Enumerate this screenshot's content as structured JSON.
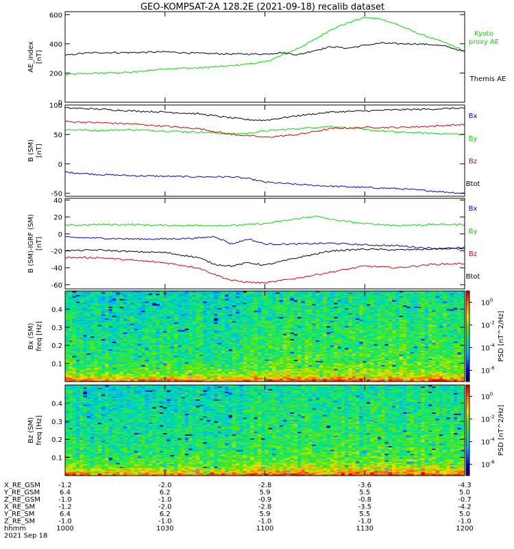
{
  "title": "GEO-KOMPSAT-2A 128.2E (2021-09-18) recalib dataset",
  "colors": {
    "black": "#000000",
    "green": "#00dd00",
    "red": "#dd0000",
    "blue": "#0000cc"
  },
  "time_axis": {
    "start_hhmm": "1000",
    "end_hhmm": "1200",
    "tick_minutes": [
      0,
      30,
      60,
      90,
      120
    ]
  },
  "chart_data": [
    {
      "type": "line",
      "ylabel": "AE_index\n[nT]",
      "ylim": [
        0,
        620
      ],
      "yticks": [
        0,
        200,
        400,
        600
      ],
      "series": [
        {
          "name": "Kyoto\nproxy AE",
          "color": "green",
          "x": [
            0,
            5,
            10,
            20,
            30,
            40,
            50,
            60,
            65,
            70,
            75,
            80,
            85,
            90,
            95,
            100,
            105,
            110,
            115,
            120
          ],
          "y": [
            190,
            195,
            200,
            205,
            230,
            235,
            250,
            275,
            320,
            370,
            430,
            500,
            545,
            580,
            570,
            530,
            480,
            440,
            400,
            350
          ]
        },
        {
          "name": "Themis AE",
          "color": "black",
          "x": [
            0,
            5,
            10,
            20,
            30,
            40,
            50,
            60,
            65,
            70,
            75,
            80,
            85,
            90,
            95,
            100,
            105,
            110,
            115,
            120
          ],
          "y": [
            320,
            335,
            340,
            340,
            345,
            335,
            330,
            330,
            340,
            325,
            355,
            380,
            370,
            390,
            405,
            400,
            400,
            395,
            380,
            345
          ]
        }
      ]
    },
    {
      "type": "line",
      "ylabel": "B (SM)\n[nT]",
      "ylim": [
        -55,
        100
      ],
      "yticks": [
        -50,
        0,
        50,
        100
      ],
      "series": [
        {
          "name": "Bx",
          "color": "blue",
          "x": [
            0,
            10,
            20,
            30,
            40,
            50,
            55,
            60,
            70,
            80,
            90,
            100,
            110,
            120
          ],
          "y": [
            -14,
            -18,
            -20,
            -21,
            -22,
            -22,
            -25,
            -31,
            -35,
            -38,
            -40,
            -42,
            -46,
            -50
          ]
        },
        {
          "name": "By",
          "color": "green",
          "x": [
            0,
            10,
            20,
            30,
            40,
            50,
            55,
            60,
            70,
            80,
            90,
            100,
            110,
            120
          ],
          "y": [
            58,
            57,
            58,
            56,
            54,
            51,
            52,
            56,
            60,
            64,
            58,
            54,
            52,
            50
          ]
        },
        {
          "name": "Bz",
          "color": "red",
          "x": [
            0,
            10,
            20,
            30,
            40,
            50,
            55,
            60,
            70,
            80,
            90,
            100,
            110,
            120
          ],
          "y": [
            72,
            70,
            68,
            64,
            60,
            50,
            48,
            45,
            50,
            60,
            62,
            62,
            64,
            67
          ]
        },
        {
          "name": "Btot",
          "color": "black",
          "x": [
            0,
            10,
            20,
            30,
            40,
            50,
            55,
            60,
            70,
            80,
            90,
            100,
            110,
            120
          ],
          "y": [
            95,
            93,
            90,
            88,
            85,
            78,
            75,
            74,
            82,
            88,
            90,
            92,
            93,
            95
          ]
        }
      ]
    },
    {
      "type": "line",
      "ylabel": "B (SM)-IGRF (SM)\n[nT]",
      "ylim": [
        -65,
        42
      ],
      "yticks": [
        -60,
        -40,
        -20,
        0,
        20,
        40
      ],
      "series": [
        {
          "name": "Bx",
          "color": "blue",
          "x": [
            0,
            10,
            20,
            30,
            40,
            45,
            50,
            55,
            60,
            70,
            80,
            90,
            100,
            110,
            120
          ],
          "y": [
            -4,
            -5,
            -6,
            -6,
            -5,
            -3,
            -12,
            -6,
            -12,
            -12,
            -11,
            -13,
            -14,
            -17,
            -18
          ]
        },
        {
          "name": "By",
          "color": "green",
          "x": [
            0,
            10,
            20,
            30,
            40,
            50,
            60,
            70,
            75,
            80,
            90,
            100,
            110,
            120
          ],
          "y": [
            10,
            11,
            11,
            10,
            10,
            10,
            12,
            18,
            21,
            17,
            12,
            10,
            11,
            11
          ]
        },
        {
          "name": "Bz",
          "color": "red",
          "x": [
            0,
            10,
            20,
            30,
            40,
            45,
            50,
            55,
            60,
            65,
            70,
            80,
            90,
            100,
            110,
            120
          ],
          "y": [
            -28,
            -28,
            -31,
            -34,
            -40,
            -48,
            -55,
            -57,
            -58,
            -55,
            -52,
            -45,
            -38,
            -40,
            -36,
            -35
          ]
        },
        {
          "name": "Btot",
          "color": "black",
          "x": [
            0,
            10,
            20,
            30,
            40,
            45,
            50,
            55,
            60,
            70,
            80,
            90,
            100,
            110,
            120
          ],
          "y": [
            -20,
            -19,
            -21,
            -22,
            -28,
            -36,
            -38,
            -34,
            -37,
            -28,
            -20,
            -18,
            -19,
            -18,
            -16
          ]
        }
      ]
    },
    {
      "type": "heatmap",
      "ylabel": "Bx (SM)\nfreq [Hz]",
      "ylim": [
        0,
        0.5
      ],
      "yticks": [
        0.1,
        0.2,
        0.3,
        0.4
      ],
      "colorbar": {
        "label": "PSD [nT^2/Hz]",
        "exponents": [
          0,
          -2,
          -4,
          -6
        ],
        "range": [
          -7,
          1
        ]
      }
    },
    {
      "type": "heatmap",
      "ylabel": "Bz (SM)\nfreq [Hz]",
      "ylim": [
        0,
        0.5
      ],
      "yticks": [
        0.1,
        0.2,
        0.3,
        0.4
      ],
      "colorbar": {
        "label": "PSD [nT^2/Hz]",
        "exponents": [
          0,
          -2,
          -4,
          -6
        ],
        "range": [
          -7,
          1
        ]
      }
    }
  ],
  "ephemeris": {
    "rows": [
      {
        "label": "X_RE_GSM",
        "values": [
          "-1.2",
          "-2.0",
          "-2.8",
          "-3.6",
          "-4.3"
        ]
      },
      {
        "label": "Y_RE_GSM",
        "values": [
          "6.4",
          "6.2",
          "5.9",
          "5.5",
          "5.0"
        ]
      },
      {
        "label": "Z_RE_GSM",
        "values": [
          "-1.0",
          "-1.0",
          "-0.9",
          "-0.8",
          "-0.7"
        ]
      },
      {
        "label": "X_RE_SM",
        "values": [
          "-1.2",
          "-2.0",
          "-2.8",
          "-3.5",
          "-4.2"
        ]
      },
      {
        "label": "Y_RE_SM",
        "values": [
          "6.4",
          "6.2",
          "5.9",
          "5.5",
          "5.0"
        ]
      },
      {
        "label": "Z_RE_SM",
        "values": [
          "-1.0",
          "-1.0",
          "-1.0",
          "-1.0",
          "-1.0"
        ]
      },
      {
        "label": "hhmm",
        "values": [
          "1000",
          "1030",
          "1100",
          "1130",
          "1200"
        ]
      }
    ],
    "date": "2021 Sep 18"
  }
}
